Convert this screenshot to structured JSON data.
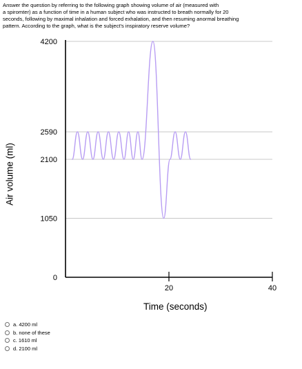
{
  "question": {
    "lines": [
      "Answer the question by referring to the following graph showing volume of air (measured with",
      "a spiromter) as a function of time in a human subject who was instructed to breath normally for 20",
      "seconds, following by maximal inhalation and forced exhalation, and then resuming anormal breathing",
      "pattern.  According to the graph, what is the subject's inspiratory reserve volume?"
    ]
  },
  "chart_data": {
    "type": "line",
    "xlabel": "Time (seconds)",
    "ylabel": "Air volume (ml)",
    "x_ticks": [
      20,
      40
    ],
    "y_ticks": [
      0,
      1050,
      2100,
      2590,
      4200
    ],
    "xlim": [
      0,
      40
    ],
    "ylim": [
      0,
      4200
    ],
    "grid_lines_y": [
      1050,
      2100,
      2590,
      4200
    ],
    "series": [
      {
        "color": "#b79cf3",
        "points": [
          [
            1.3,
            2100
          ],
          [
            2.3,
            2590
          ],
          [
            3.3,
            2100
          ],
          [
            4.3,
            2590
          ],
          [
            5.3,
            2100
          ],
          [
            6.3,
            2590
          ],
          [
            7.3,
            2100
          ],
          [
            8.3,
            2590
          ],
          [
            9.3,
            2100
          ],
          [
            10.3,
            2590
          ],
          [
            11.3,
            2100
          ],
          [
            12.2,
            2590
          ],
          [
            13.1,
            2100
          ],
          [
            14.0,
            2590
          ],
          [
            14.8,
            2100
          ],
          [
            16.9,
            4200
          ],
          [
            19.0,
            1050
          ],
          [
            20.2,
            2100
          ],
          [
            21.2,
            2590
          ],
          [
            22.2,
            2100
          ],
          [
            23.2,
            2590
          ],
          [
            24.2,
            2100
          ]
        ]
      }
    ]
  },
  "answers": [
    {
      "label": "a. 4200 ml"
    },
    {
      "label": "b. none of these"
    },
    {
      "label": "c. 1610 ml"
    },
    {
      "label": "d. 2100 ml"
    }
  ]
}
